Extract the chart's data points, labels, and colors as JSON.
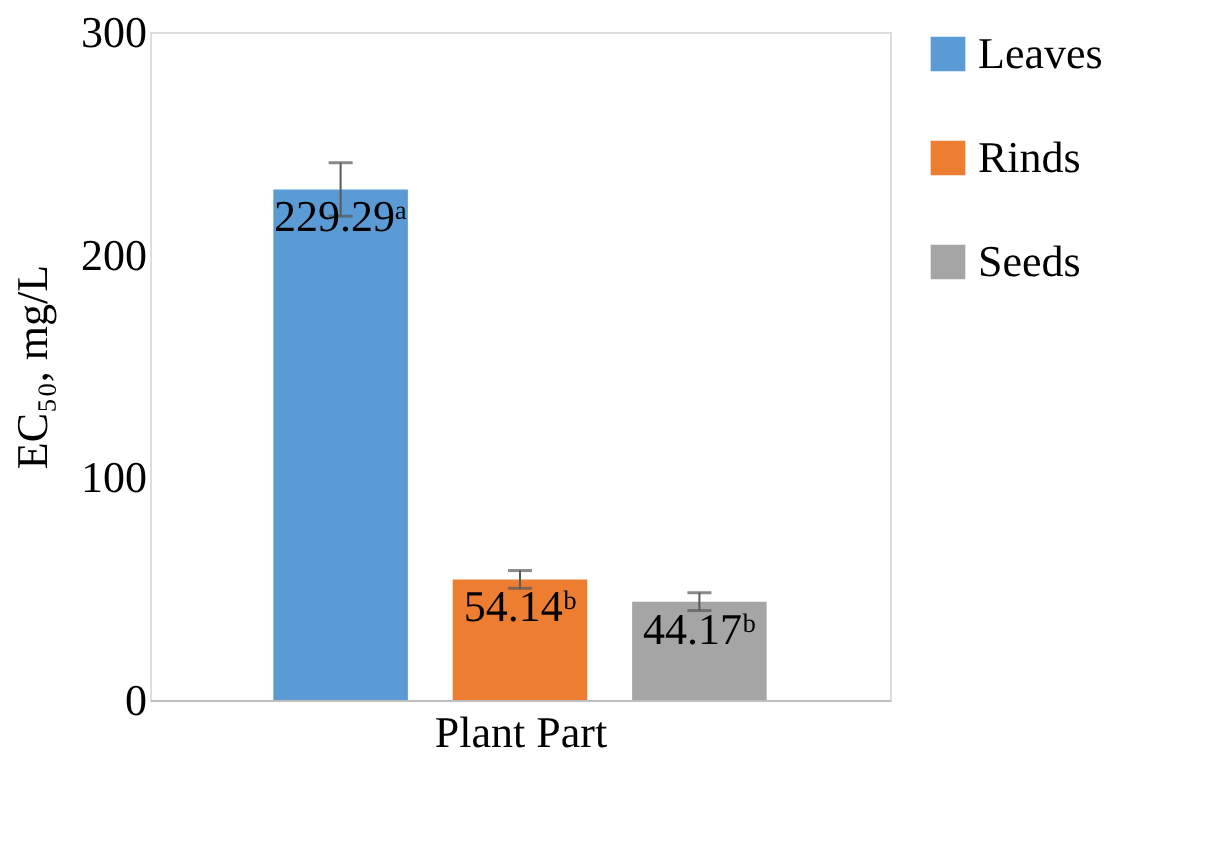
{
  "chart_data": {
    "type": "bar",
    "xlabel": "Plant Part",
    "ylabel": "EC₅₀, mg/L",
    "categories": [
      null
    ],
    "series": [
      {
        "name": "Leaves",
        "color": "#5b9bd5",
        "values": [
          229.29
        ],
        "errors": [
          12
        ],
        "value_labels": [
          "229.29ᵃ"
        ]
      },
      {
        "name": "Rinds",
        "color": "#ed7d31",
        "values": [
          54.14
        ],
        "errors": [
          4
        ],
        "value_labels": [
          "54.14ᵇ"
        ]
      },
      {
        "name": "Seeds",
        "color": "#a5a5a5",
        "values": [
          44.17
        ],
        "errors": [
          4
        ],
        "value_labels": [
          "44.17ᵇ"
        ]
      }
    ],
    "ylim": [
      0,
      300
    ],
    "yticks": [
      0,
      100,
      200,
      300
    ],
    "grid": false,
    "legend": "right"
  }
}
